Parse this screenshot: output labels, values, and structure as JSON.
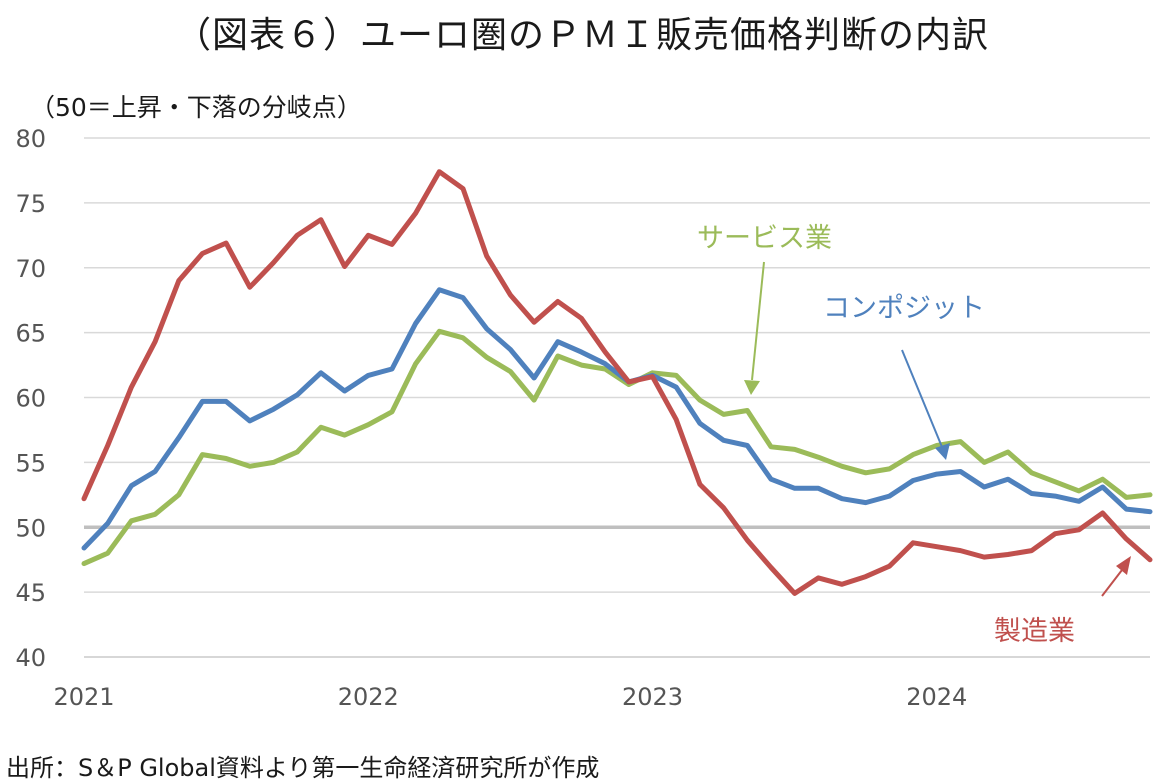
{
  "title": "（図表６）ユーロ圏のＰＭＩ販売価格判断の内訳",
  "y_unit_note": "（50＝上昇・下落の分岐点）",
  "source_note": "出所：S＆P Global資料より第一生命経済研究所が作成",
  "colors": {
    "services": "#9bbb59",
    "composite": "#4f81bd",
    "manufacturing": "#c0504d",
    "reference_line": "#bfbfbf",
    "grid": "#d9d9d9"
  },
  "chart_data": {
    "type": "line",
    "title": "（図表６）ユーロ圏のＰＭＩ販売価格判断の内訳",
    "ylabel": "（50＝上昇・下落の分岐点）",
    "xlabel": "",
    "ylim": [
      40,
      80
    ],
    "yticks": [
      40,
      45,
      50,
      55,
      60,
      65,
      70,
      75,
      80
    ],
    "x_tick_labels": [
      "2021",
      "2022",
      "2023",
      "2024"
    ],
    "x_tick_indices": [
      0,
      12,
      24,
      36
    ],
    "reference_line": 50,
    "grid": true,
    "legend": "direct-labels",
    "x": [
      "2021-01",
      "2021-02",
      "2021-03",
      "2021-04",
      "2021-05",
      "2021-06",
      "2021-07",
      "2021-08",
      "2021-09",
      "2021-10",
      "2021-11",
      "2021-12",
      "2022-01",
      "2022-02",
      "2022-03",
      "2022-04",
      "2022-05",
      "2022-06",
      "2022-07",
      "2022-08",
      "2022-09",
      "2022-10",
      "2022-11",
      "2022-12",
      "2023-01",
      "2023-02",
      "2023-03",
      "2023-04",
      "2023-05",
      "2023-06",
      "2023-07",
      "2023-08",
      "2023-09",
      "2023-10",
      "2023-11",
      "2023-12",
      "2024-01",
      "2024-02",
      "2024-03",
      "2024-04",
      "2024-05",
      "2024-06",
      "2024-07",
      "2024-08",
      "2024-09",
      "2024-10"
    ],
    "series": [
      {
        "name": "製造業",
        "color": "#c0504d",
        "values": [
          52.2,
          56.3,
          60.8,
          64.3,
          69.0,
          71.1,
          71.9,
          68.5,
          70.4,
          72.5,
          73.7,
          70.1,
          72.5,
          71.8,
          74.2,
          77.4,
          76.1,
          70.9,
          67.9,
          65.8,
          67.4,
          66.1,
          63.5,
          61.2,
          61.6,
          58.3,
          53.3,
          51.5,
          49.0,
          46.9,
          44.9,
          46.1,
          45.6,
          46.2,
          47.0,
          48.8,
          48.5,
          48.2,
          47.7,
          47.9,
          48.2,
          49.5,
          49.8,
          51.1,
          49.1,
          47.5
        ]
      },
      {
        "name": "コンポジット",
        "color": "#4f81bd",
        "values": [
          48.4,
          50.3,
          53.2,
          54.3,
          56.9,
          59.7,
          59.7,
          58.2,
          59.1,
          60.2,
          61.9,
          60.5,
          61.7,
          62.2,
          65.7,
          68.3,
          67.7,
          65.3,
          63.7,
          61.5,
          64.3,
          63.5,
          62.6,
          61.2,
          61.7,
          60.8,
          58.0,
          56.7,
          56.3,
          53.7,
          53.0,
          53.0,
          52.2,
          51.9,
          52.4,
          53.6,
          54.1,
          54.3,
          53.1,
          53.7,
          52.6,
          52.4,
          52.0,
          53.1,
          51.4,
          51.2
        ]
      },
      {
        "name": "サービス業",
        "color": "#9bbb59",
        "values": [
          47.2,
          48.0,
          50.5,
          51.0,
          52.5,
          55.6,
          55.3,
          54.7,
          55.0,
          55.8,
          57.7,
          57.1,
          57.9,
          58.9,
          62.6,
          65.1,
          64.6,
          63.1,
          62.0,
          59.8,
          63.2,
          62.5,
          62.2,
          61.0,
          61.9,
          61.7,
          59.8,
          58.7,
          59.0,
          56.2,
          56.0,
          55.4,
          54.7,
          54.2,
          54.5,
          55.6,
          56.3,
          56.6,
          55.0,
          55.8,
          54.2,
          53.5,
          52.8,
          53.7,
          52.3,
          52.5
        ]
      }
    ]
  }
}
